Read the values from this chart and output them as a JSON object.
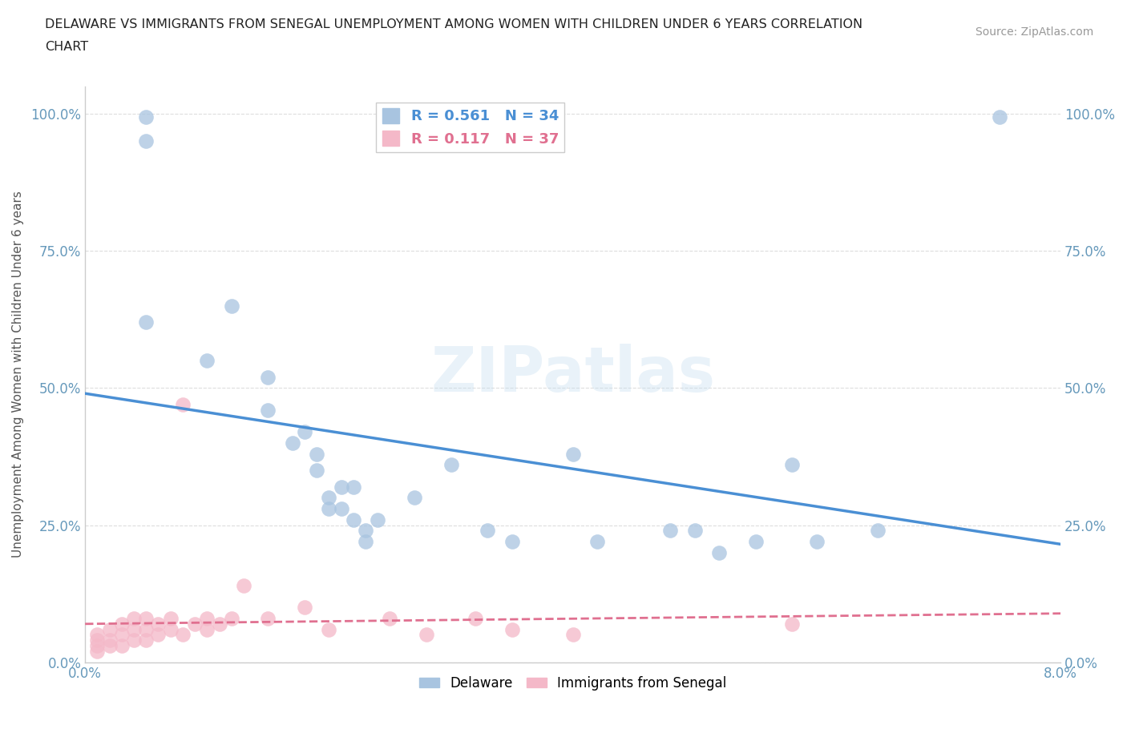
{
  "title": "DELAWARE VS IMMIGRANTS FROM SENEGAL UNEMPLOYMENT AMONG WOMEN WITH CHILDREN UNDER 6 YEARS CORRELATION\nCHART",
  "source_text": "Source: ZipAtlas.com",
  "ylabel": "Unemployment Among Women with Children Under 6 years",
  "xlim": [
    0.0,
    0.08
  ],
  "ylim": [
    0.0,
    1.05
  ],
  "yticks": [
    0.0,
    0.25,
    0.5,
    0.75,
    1.0
  ],
  "ytick_labels": [
    "0.0%",
    "25.0%",
    "50.0%",
    "75.0%",
    "100.0%"
  ],
  "watermark": "ZIPatlas",
  "blue_color": "#a8c4e0",
  "pink_color": "#f4b8c8",
  "blue_line_color": "#4a8fd4",
  "pink_line_color": "#e07090",
  "R1": 0.561,
  "N1": 34,
  "R2": 0.117,
  "N2": 37,
  "delaware_x": [
    0.005,
    0.005,
    0.005,
    0.01,
    0.012,
    0.015,
    0.015,
    0.017,
    0.018,
    0.019,
    0.019,
    0.02,
    0.02,
    0.021,
    0.021,
    0.022,
    0.022,
    0.023,
    0.023,
    0.024,
    0.027,
    0.03,
    0.033,
    0.035,
    0.04,
    0.042,
    0.048,
    0.05,
    0.052,
    0.055,
    0.058,
    0.06,
    0.065,
    0.075
  ],
  "delaware_y": [
    0.995,
    0.95,
    0.62,
    0.55,
    0.65,
    0.52,
    0.46,
    0.4,
    0.42,
    0.35,
    0.38,
    0.3,
    0.28,
    0.32,
    0.28,
    0.26,
    0.32,
    0.24,
    0.22,
    0.26,
    0.3,
    0.36,
    0.24,
    0.22,
    0.38,
    0.22,
    0.24,
    0.24,
    0.2,
    0.22,
    0.36,
    0.22,
    0.24,
    0.995
  ],
  "senegal_x": [
    0.001,
    0.001,
    0.001,
    0.001,
    0.002,
    0.002,
    0.002,
    0.003,
    0.003,
    0.003,
    0.004,
    0.004,
    0.004,
    0.005,
    0.005,
    0.005,
    0.006,
    0.006,
    0.007,
    0.007,
    0.008,
    0.008,
    0.009,
    0.01,
    0.01,
    0.011,
    0.012,
    0.013,
    0.015,
    0.018,
    0.02,
    0.025,
    0.028,
    0.032,
    0.035,
    0.04,
    0.058
  ],
  "senegal_y": [
    0.05,
    0.04,
    0.03,
    0.02,
    0.06,
    0.04,
    0.03,
    0.07,
    0.05,
    0.03,
    0.08,
    0.06,
    0.04,
    0.08,
    0.06,
    0.04,
    0.07,
    0.05,
    0.08,
    0.06,
    0.47,
    0.05,
    0.07,
    0.08,
    0.06,
    0.07,
    0.08,
    0.14,
    0.08,
    0.1,
    0.06,
    0.08,
    0.05,
    0.08,
    0.06,
    0.05,
    0.07
  ]
}
